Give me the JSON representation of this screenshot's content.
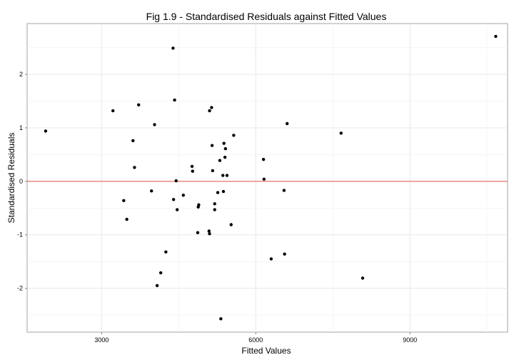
{
  "chart_data": {
    "type": "scatter",
    "title": "Fig 1.9 - Standardised Residuals against Fitted Values",
    "xlabel": "Fitted Values",
    "ylabel": "Standardised Residuals",
    "xlim": [
      1550,
      10900
    ],
    "ylim": [
      -2.82,
      2.95
    ],
    "x_ticks": [
      3000,
      6000,
      9000
    ],
    "x_tick_labels": [
      "3000",
      "6000",
      "9000"
    ],
    "y_ticks": [
      -2,
      -1,
      0,
      1,
      2
    ],
    "y_tick_labels": [
      "-2",
      "-1",
      "0",
      "1",
      "2"
    ],
    "grid": true,
    "reference_line": {
      "y": 0,
      "color": "#e8736b"
    },
    "point_color": "#000000",
    "points": [
      {
        "x": 1910,
        "y": 0.94
      },
      {
        "x": 3220,
        "y": 1.32
      },
      {
        "x": 3430,
        "y": -0.36
      },
      {
        "x": 3490,
        "y": -0.71
      },
      {
        "x": 3610,
        "y": 0.76
      },
      {
        "x": 3640,
        "y": 0.26
      },
      {
        "x": 3720,
        "y": 1.43
      },
      {
        "x": 3970,
        "y": -0.18
      },
      {
        "x": 4030,
        "y": 1.06
      },
      {
        "x": 4080,
        "y": -1.95
      },
      {
        "x": 4150,
        "y": -1.71
      },
      {
        "x": 4250,
        "y": -1.32
      },
      {
        "x": 4390,
        "y": 2.49
      },
      {
        "x": 4400,
        "y": -0.34
      },
      {
        "x": 4420,
        "y": 1.52
      },
      {
        "x": 4450,
        "y": 0.01
      },
      {
        "x": 4470,
        "y": -0.53
      },
      {
        "x": 4590,
        "y": -0.26
      },
      {
        "x": 4760,
        "y": 0.28
      },
      {
        "x": 4770,
        "y": 0.19
      },
      {
        "x": 4870,
        "y": -0.96
      },
      {
        "x": 4880,
        "y": -0.48
      },
      {
        "x": 4890,
        "y": -0.44
      },
      {
        "x": 5090,
        "y": -0.93
      },
      {
        "x": 5100,
        "y": -0.98
      },
      {
        "x": 5100,
        "y": 1.32
      },
      {
        "x": 5140,
        "y": 1.38
      },
      {
        "x": 5150,
        "y": 0.67
      },
      {
        "x": 5160,
        "y": 0.2
      },
      {
        "x": 5200,
        "y": -0.42
      },
      {
        "x": 5200,
        "y": -0.53
      },
      {
        "x": 5260,
        "y": -0.21
      },
      {
        "x": 5300,
        "y": 0.39
      },
      {
        "x": 5320,
        "y": -2.57
      },
      {
        "x": 5360,
        "y": 0.11
      },
      {
        "x": 5370,
        "y": -0.19
      },
      {
        "x": 5380,
        "y": 0.71
      },
      {
        "x": 5400,
        "y": 0.45
      },
      {
        "x": 5410,
        "y": 0.61
      },
      {
        "x": 5440,
        "y": 0.11
      },
      {
        "x": 5520,
        "y": -0.81
      },
      {
        "x": 5570,
        "y": 0.86
      },
      {
        "x": 6150,
        "y": 0.41
      },
      {
        "x": 6160,
        "y": 0.04
      },
      {
        "x": 6300,
        "y": -1.45
      },
      {
        "x": 6550,
        "y": -0.17
      },
      {
        "x": 6560,
        "y": -1.36
      },
      {
        "x": 6610,
        "y": 1.08
      },
      {
        "x": 7660,
        "y": 0.9
      },
      {
        "x": 8080,
        "y": -1.81
      },
      {
        "x": 10670,
        "y": 2.71
      }
    ]
  }
}
